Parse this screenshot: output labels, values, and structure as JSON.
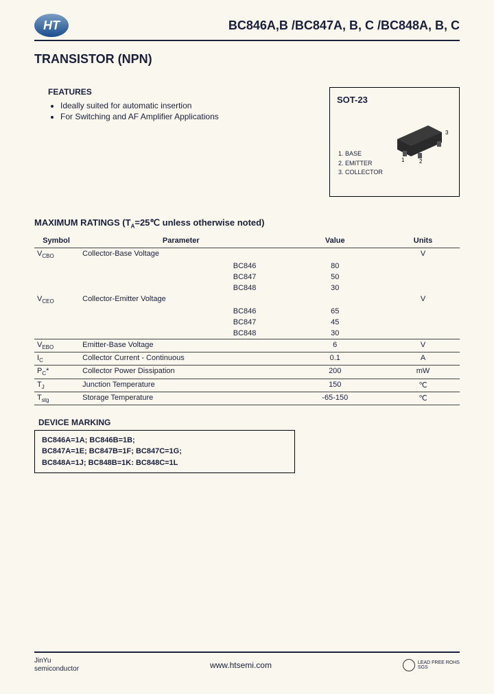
{
  "header": {
    "logo_text": "HT",
    "part_title": "BC846A,B /BC847A, B, C  /BC848A, B, C"
  },
  "main_title": "TRANSISTOR (NPN)",
  "features": {
    "heading": "FEATURES",
    "items": [
      "Ideally suited for automatic insertion",
      "For Switching and AF Amplifier Applications"
    ]
  },
  "package": {
    "name": "SOT-23",
    "pins": [
      "1. BASE",
      "2. EMITTER",
      "3. COLLECTOR"
    ],
    "pin_labels": {
      "p1": "1",
      "p2": "2",
      "p3": "3"
    }
  },
  "ratings": {
    "heading": "MAXIMUM RATINGS (T",
    "heading_sub": "A",
    "heading_rest": "=25℃ unless otherwise noted)",
    "columns": [
      "Symbol",
      "Parameter",
      "Value",
      "Units"
    ],
    "groups": [
      {
        "symbol": "V",
        "symbol_sub": "CBO",
        "param": "Collector-Base Voltage",
        "unit": "V",
        "subs": [
          {
            "label": "BC846",
            "value": "80"
          },
          {
            "label": "BC847",
            "value": "50"
          },
          {
            "label": "BC848",
            "value": "30"
          }
        ]
      },
      {
        "symbol": "V",
        "symbol_sub": "CEO",
        "param": "Collector-Emitter Voltage",
        "unit": "V",
        "subs": [
          {
            "label": "BC846",
            "value": "65"
          },
          {
            "label": "BC847",
            "value": "45"
          },
          {
            "label": "BC848",
            "value": "30"
          }
        ]
      }
    ],
    "simple_rows": [
      {
        "symbol": "V",
        "symbol_sub": "EBO",
        "param": "Emitter-Base Voltage",
        "value": "6",
        "unit": "V"
      },
      {
        "symbol": "I",
        "symbol_sub": "C",
        "param": "Collector Current - Continuous",
        "value": "0.1",
        "unit": "A"
      },
      {
        "symbol": "P",
        "symbol_sub": "C",
        "symbol_suffix": "*",
        "param": "Collector Power Dissipation",
        "value": "200",
        "unit": "mW"
      },
      {
        "symbol": "T",
        "symbol_sub": "J",
        "param": "Junction Temperature",
        "value": "150",
        "unit": "℃"
      },
      {
        "symbol": "T",
        "symbol_sub": "stg",
        "param": "Storage Temperature",
        "value": "-65-150",
        "unit": "℃"
      }
    ]
  },
  "marking": {
    "heading": "DEVICE MARKING",
    "lines": [
      "BC846A=1A; BC846B=1B;",
      "BC847A=1E; BC847B=1F; BC847C=1G;",
      "BC848A=1J; BC848B=1K: BC848C=1L"
    ]
  },
  "footer": {
    "left_line1": "JinYu",
    "left_line2": "semiconductor",
    "center": "www.htsemi.com",
    "right": "LEAD FREE ROHS",
    "right2": "SGS"
  }
}
